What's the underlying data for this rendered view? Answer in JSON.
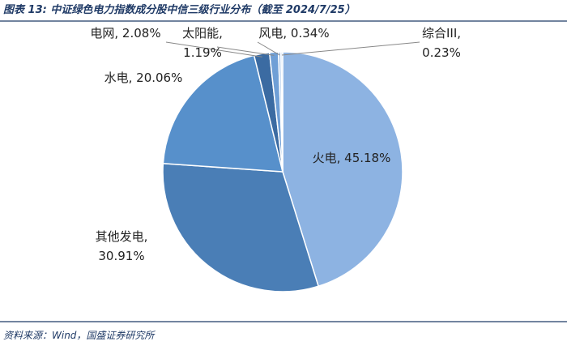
{
  "chart_data": {
    "type": "pie",
    "title": "图表 13:  中证绿色电力指数成分股中信三级行业分布（截至 2024/7/25）",
    "source": "资料来源：Wind，国盛证券研究所",
    "labels": [
      [
        "火电, 45.18%"
      ],
      [
        "其他发电,",
        "30.91%"
      ],
      [
        "水电, 20.06%"
      ],
      [
        "电网, 2.08%"
      ],
      [
        "太阳能,",
        "1.19%"
      ],
      [
        "风电, 0.34%"
      ],
      [
        "综合III,",
        "0.23%"
      ]
    ],
    "values": [
      45.18,
      30.91,
      20.06,
      2.08,
      1.19,
      0.34,
      0.23
    ],
    "colors": [
      "#8db3e2",
      "#4a7eb6",
      "#5790cb",
      "#3b6ba2",
      "#6f9fd6",
      "#a9c6e8",
      "#c8dbf0"
    ]
  }
}
